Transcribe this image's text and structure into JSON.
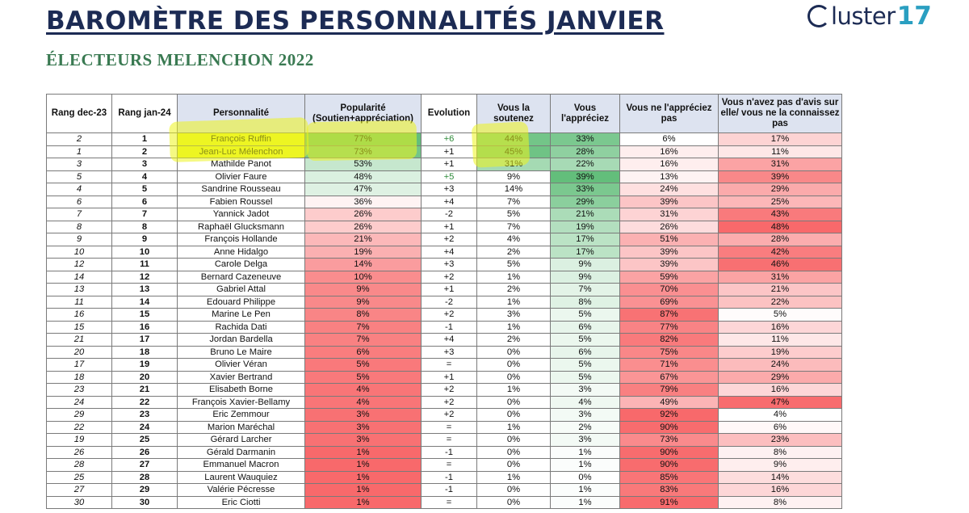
{
  "header": {
    "title": "BAROMÈTRE DES PERSONNALITÉS JANVIER",
    "subtitle": "ÉLECTEURS MELENCHON 2022",
    "logo_word": "luster",
    "logo_number": "17"
  },
  "colors": {
    "green_strong": "#63be7b",
    "red_strong": "#f8696b",
    "white": "#ffffff",
    "highlighter": "#eef528"
  },
  "columns": [
    "Rang dec-23",
    "Rang jan-24",
    "Personnalité",
    "Popularité (Soutien+appréciation)",
    "Evolution",
    "Vous la soutenez",
    "Vous l'appréciez",
    "Vous ne l'appréciez pas",
    "Vous n'avez pas d'avis sur elle/ vous ne la connaissez pas"
  ],
  "rows": [
    {
      "prev": "2",
      "cur": "1",
      "name": "François Ruffin",
      "pop": "77%",
      "evo": "+6",
      "sout": "44%",
      "appr": "33%",
      "neg": "6%",
      "nsp": "17%"
    },
    {
      "prev": "1",
      "cur": "2",
      "name": "Jean-Luc Mélenchon",
      "pop": "73%",
      "evo": "+1",
      "sout": "45%",
      "appr": "28%",
      "neg": "16%",
      "nsp": "11%"
    },
    {
      "prev": "3",
      "cur": "3",
      "name": "Mathilde Panot",
      "pop": "53%",
      "evo": "+1",
      "sout": "31%",
      "appr": "22%",
      "neg": "16%",
      "nsp": "31%"
    },
    {
      "prev": "5",
      "cur": "4",
      "name": "Olivier Faure",
      "pop": "48%",
      "evo": "+5",
      "sout": "9%",
      "appr": "39%",
      "neg": "13%",
      "nsp": "39%"
    },
    {
      "prev": "4",
      "cur": "5",
      "name": "Sandrine Rousseau",
      "pop": "47%",
      "evo": "+3",
      "sout": "14%",
      "appr": "33%",
      "neg": "24%",
      "nsp": "29%"
    },
    {
      "prev": "6",
      "cur": "6",
      "name": "Fabien Roussel",
      "pop": "36%",
      "evo": "+4",
      "sout": "7%",
      "appr": "29%",
      "neg": "39%",
      "nsp": "25%"
    },
    {
      "prev": "7",
      "cur": "7",
      "name": "Yannick Jadot",
      "pop": "26%",
      "evo": "-2",
      "sout": "5%",
      "appr": "21%",
      "neg": "31%",
      "nsp": "43%"
    },
    {
      "prev": "8",
      "cur": "8",
      "name": "Raphaël Glucksmann",
      "pop": "26%",
      "evo": "+1",
      "sout": "7%",
      "appr": "19%",
      "neg": "26%",
      "nsp": "48%"
    },
    {
      "prev": "9",
      "cur": "9",
      "name": "François Hollande",
      "pop": "21%",
      "evo": "+2",
      "sout": "4%",
      "appr": "17%",
      "neg": "51%",
      "nsp": "28%"
    },
    {
      "prev": "10",
      "cur": "10",
      "name": "Anne Hidalgo",
      "pop": "19%",
      "evo": "+4",
      "sout": "2%",
      "appr": "17%",
      "neg": "39%",
      "nsp": "42%"
    },
    {
      "prev": "12",
      "cur": "11",
      "name": "Carole Delga",
      "pop": "14%",
      "evo": "+3",
      "sout": "5%",
      "appr": "9%",
      "neg": "39%",
      "nsp": "46%"
    },
    {
      "prev": "14",
      "cur": "12",
      "name": "Bernard Cazeneuve",
      "pop": "10%",
      "evo": "+2",
      "sout": "1%",
      "appr": "9%",
      "neg": "59%",
      "nsp": "31%"
    },
    {
      "prev": "13",
      "cur": "13",
      "name": "Gabriel Attal",
      "pop": "9%",
      "evo": "+1",
      "sout": "2%",
      "appr": "7%",
      "neg": "70%",
      "nsp": "21%"
    },
    {
      "prev": "11",
      "cur": "14",
      "name": "Edouard Philippe",
      "pop": "9%",
      "evo": "-2",
      "sout": "1%",
      "appr": "8%",
      "neg": "69%",
      "nsp": "22%"
    },
    {
      "prev": "16",
      "cur": "15",
      "name": "Marine Le Pen",
      "pop": "8%",
      "evo": "+2",
      "sout": "3%",
      "appr": "5%",
      "neg": "87%",
      "nsp": "5%"
    },
    {
      "prev": "15",
      "cur": "16",
      "name": "Rachida Dati",
      "pop": "7%",
      "evo": "-1",
      "sout": "1%",
      "appr": "6%",
      "neg": "77%",
      "nsp": "16%"
    },
    {
      "prev": "21",
      "cur": "17",
      "name": "Jordan Bardella",
      "pop": "7%",
      "evo": "+4",
      "sout": "2%",
      "appr": "5%",
      "neg": "82%",
      "nsp": "11%"
    },
    {
      "prev": "20",
      "cur": "18",
      "name": "Bruno Le Maire",
      "pop": "6%",
      "evo": "+3",
      "sout": "0%",
      "appr": "6%",
      "neg": "75%",
      "nsp": "19%"
    },
    {
      "prev": "17",
      "cur": "19",
      "name": "Olivier Véran",
      "pop": "5%",
      "evo": "=",
      "sout": "0%",
      "appr": "5%",
      "neg": "71%",
      "nsp": "24%"
    },
    {
      "prev": "18",
      "cur": "20",
      "name": "Xavier Bertrand",
      "pop": "5%",
      "evo": "+1",
      "sout": "0%",
      "appr": "5%",
      "neg": "67%",
      "nsp": "29%"
    },
    {
      "prev": "23",
      "cur": "21",
      "name": "Elisabeth Borne",
      "pop": "4%",
      "evo": "+2",
      "sout": "1%",
      "appr": "3%",
      "neg": "79%",
      "nsp": "16%"
    },
    {
      "prev": "24",
      "cur": "22",
      "name": "François Xavier-Bellamy",
      "pop": "4%",
      "evo": "+2",
      "sout": "0%",
      "appr": "4%",
      "neg": "49%",
      "nsp": "47%"
    },
    {
      "prev": "29",
      "cur": "23",
      "name": "Eric Zemmour",
      "pop": "3%",
      "evo": "+2",
      "sout": "0%",
      "appr": "3%",
      "neg": "92%",
      "nsp": "4%"
    },
    {
      "prev": "22",
      "cur": "24",
      "name": "Marion Maréchal",
      "pop": "3%",
      "evo": "=",
      "sout": "1%",
      "appr": "2%",
      "neg": "90%",
      "nsp": "6%"
    },
    {
      "prev": "19",
      "cur": "25",
      "name": "Gérard Larcher",
      "pop": "3%",
      "evo": "=",
      "sout": "0%",
      "appr": "3%",
      "neg": "73%",
      "nsp": "23%"
    },
    {
      "prev": "26",
      "cur": "26",
      "name": "Gérald Darmanin",
      "pop": "1%",
      "evo": "-1",
      "sout": "0%",
      "appr": "1%",
      "neg": "90%",
      "nsp": "8%"
    },
    {
      "prev": "28",
      "cur": "27",
      "name": "Emmanuel Macron",
      "pop": "1%",
      "evo": "=",
      "sout": "0%",
      "appr": "1%",
      "neg": "90%",
      "nsp": "9%"
    },
    {
      "prev": "25",
      "cur": "28",
      "name": "Laurent Wauquiez",
      "pop": "1%",
      "evo": "-1",
      "sout": "1%",
      "appr": "0%",
      "neg": "85%",
      "nsp": "14%"
    },
    {
      "prev": "27",
      "cur": "29",
      "name": "Valérie Pécresse",
      "pop": "1%",
      "evo": "-1",
      "sout": "0%",
      "appr": "1%",
      "neg": "83%",
      "nsp": "16%"
    },
    {
      "prev": "30",
      "cur": "30",
      "name": "Eric Ciotti",
      "pop": "1%",
      "evo": "=",
      "sout": "0%",
      "appr": "1%",
      "neg": "91%",
      "nsp": "8%"
    }
  ]
}
